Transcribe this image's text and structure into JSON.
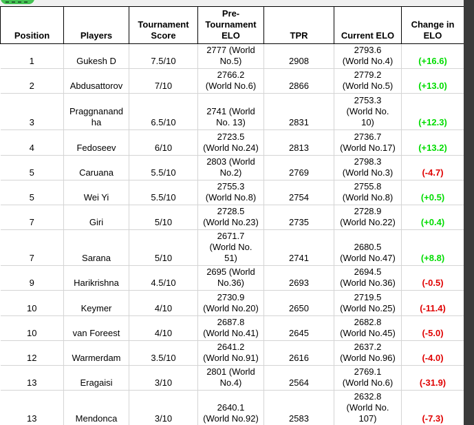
{
  "page": {
    "background": "#f0f0f0",
    "badge_color": "#44c353",
    "right_strip_color": "#3b3b3b"
  },
  "table": {
    "columns": [
      {
        "key": "position",
        "label": "Position"
      },
      {
        "key": "players",
        "label": "Players"
      },
      {
        "key": "score",
        "label": "Tournament\nScore"
      },
      {
        "key": "pre_elo",
        "label": "Pre-\nTournament\nELO"
      },
      {
        "key": "tpr",
        "label": "TPR"
      },
      {
        "key": "current_elo",
        "label": "Current ELO"
      },
      {
        "key": "change",
        "label": "Change in\nELO"
      }
    ],
    "colors": {
      "positive": "#00dc00",
      "negative": "#e00000"
    },
    "rows": [
      {
        "position": "1",
        "players": "Gukesh D",
        "score": "7.5/10",
        "pre_elo": "2777 (World\nNo.5)",
        "tpr": "2908",
        "current_elo": "2793.6\n(World No.4)",
        "change": "(+16.6)",
        "trend": "positive"
      },
      {
        "position": "2",
        "players": "Abdusattorov",
        "score": "7/10",
        "pre_elo": "2766.2\n(World No.6)",
        "tpr": "2866",
        "current_elo": "2779.2\n(World No.5)",
        "change": "(+13.0)",
        "trend": "positive"
      },
      {
        "position": "3",
        "players": "Praggnanand\nha",
        "score": "6.5/10",
        "pre_elo": "2741 (World\nNo. 13)",
        "tpr": "2831",
        "current_elo": "2753.3\n(World No.\n10)",
        "change": "(+12.3)",
        "trend": "positive"
      },
      {
        "position": "4",
        "players": "Fedoseev",
        "score": "6/10",
        "pre_elo": "2723.5\n(World No.24)",
        "tpr": "2813",
        "current_elo": "2736.7\n(World No.17)",
        "change": "(+13.2)",
        "trend": "positive"
      },
      {
        "position": "5",
        "players": "Caruana",
        "score": "5.5/10",
        "pre_elo": "2803 (World\nNo.2)",
        "tpr": "2769",
        "current_elo": "2798.3\n(World No.3)",
        "change": "(-4.7)",
        "trend": "negative"
      },
      {
        "position": "5",
        "players": "Wei Yi",
        "score": "5.5/10",
        "pre_elo": "2755.3\n(World No.8)",
        "tpr": "2754",
        "current_elo": "2755.8\n(World No.8)",
        "change": "(+0.5)",
        "trend": "positive"
      },
      {
        "position": "7",
        "players": "Giri",
        "score": "5/10",
        "pre_elo": "2728.5\n(World No.23)",
        "tpr": "2735",
        "current_elo": "2728.9\n(World No.22)",
        "change": "(+0.4)",
        "trend": "positive"
      },
      {
        "position": "7",
        "players": "Sarana",
        "score": "5/10",
        "pre_elo": "2671.7\n(World No.\n51)",
        "tpr": "2741",
        "current_elo": "2680.5\n(World No.47)",
        "change": "(+8.8)",
        "trend": "positive"
      },
      {
        "position": "9",
        "players": "Harikrishna",
        "score": "4.5/10",
        "pre_elo": "2695 (World\nNo.36)",
        "tpr": "2693",
        "current_elo": "2694.5\n(World No.36)",
        "change": "(-0.5)",
        "trend": "negative"
      },
      {
        "position": "10",
        "players": "Keymer",
        "score": "4/10",
        "pre_elo": "2730.9\n(World No.20)",
        "tpr": "2650",
        "current_elo": "2719.5\n(World No.25)",
        "change": "(-11.4)",
        "trend": "negative"
      },
      {
        "position": "10",
        "players": "van Foreest",
        "score": "4/10",
        "pre_elo": "2687.8\n(World No.41)",
        "tpr": "2645",
        "current_elo": "2682.8\n(World No.45)",
        "change": "(-5.0)",
        "trend": "negative"
      },
      {
        "position": "12",
        "players": "Warmerdam",
        "score": "3.5/10",
        "pre_elo": "2641.2\n(World No.91)",
        "tpr": "2616",
        "current_elo": "2637.2\n(World No.96)",
        "change": "(-4.0)",
        "trend": "negative"
      },
      {
        "position": "13",
        "players": "Eragaisi",
        "score": "3/10",
        "pre_elo": "2801 (World\nNo.4)",
        "tpr": "2564",
        "current_elo": "2769.1\n(World No.6)",
        "change": "(-31.9)",
        "trend": "negative"
      },
      {
        "position": "13",
        "players": "Mendonca",
        "score": "3/10",
        "pre_elo": "2640.1\n(World No.92)",
        "tpr": "2583",
        "current_elo": "2632.8\n(World No.\n107)",
        "change": "(-7.3)",
        "trend": "negative"
      }
    ]
  }
}
